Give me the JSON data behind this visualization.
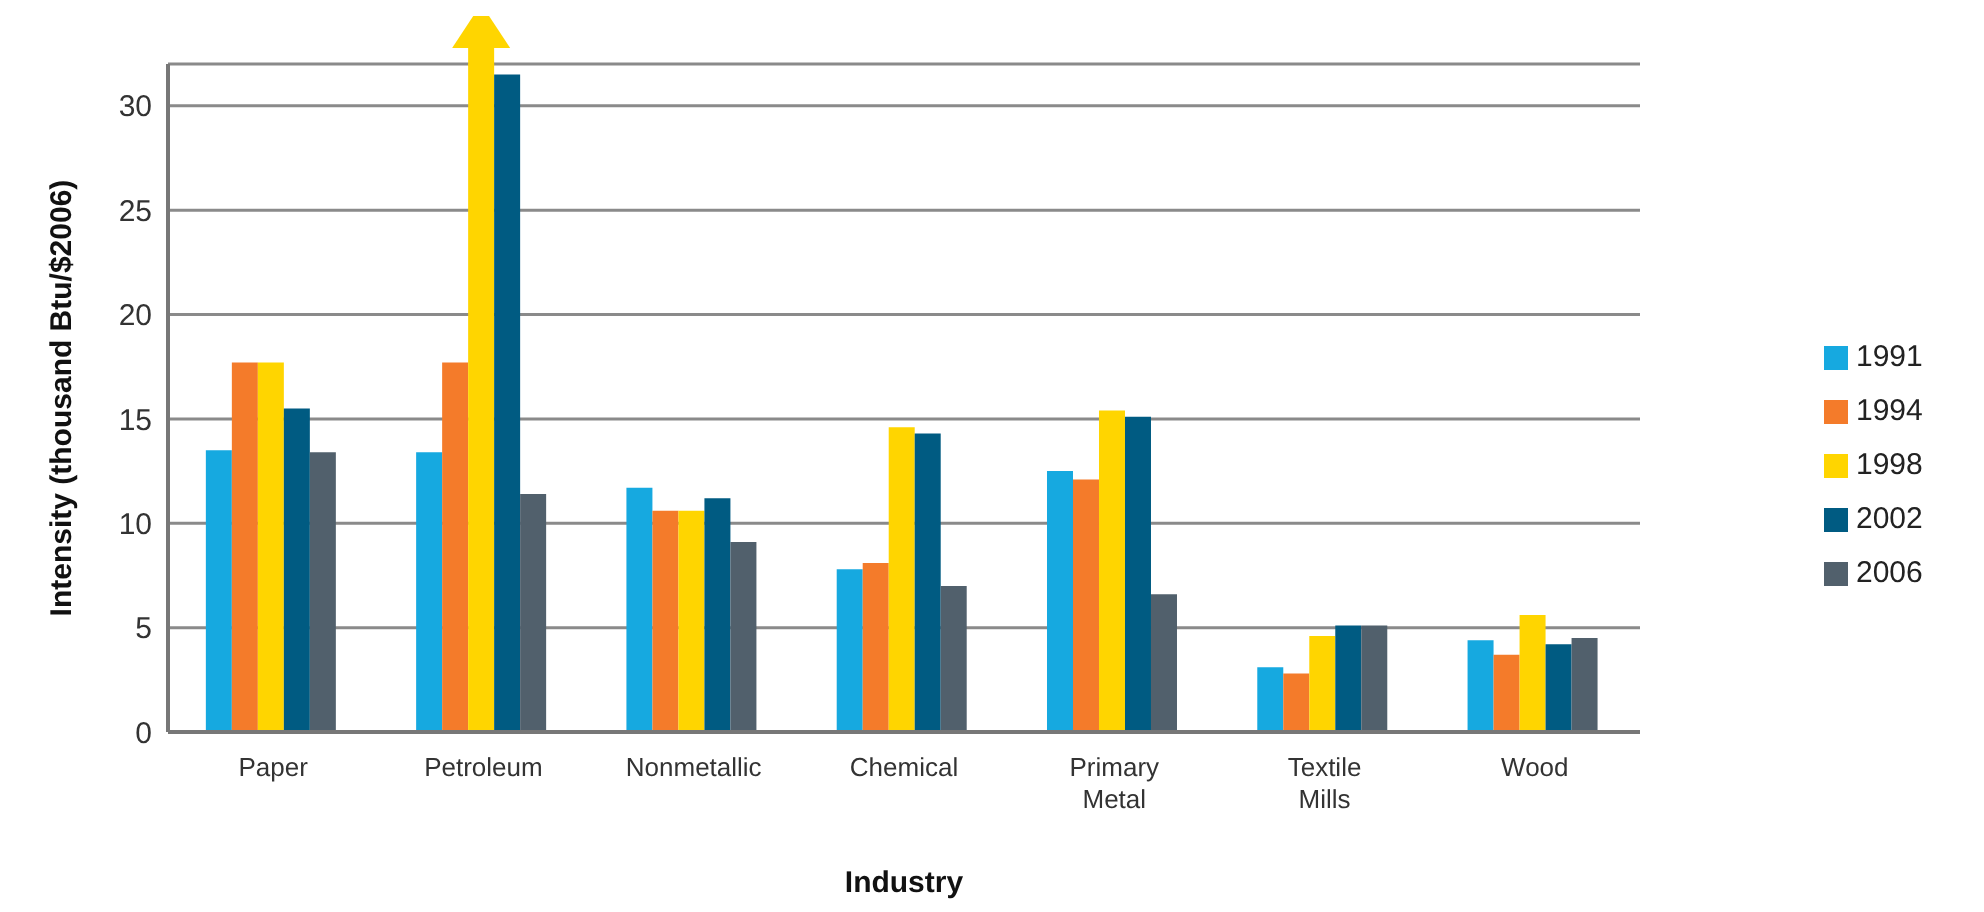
{
  "chart_data": {
    "type": "bar",
    "xlabel": "Industry",
    "ylabel": "Intensity (thousand Btu/$2006)",
    "categories": [
      "Paper",
      "Petroleum",
      "Nonmetallic",
      "Chemical",
      "Primary Metal",
      "Textile Mills",
      "Wood"
    ],
    "series": [
      {
        "name": "1991",
        "color": "#16a9e0",
        "values": [
          13.5,
          13.4,
          11.7,
          7.8,
          12.5,
          3.1,
          4.4
        ]
      },
      {
        "name": "1994",
        "color": "#f47b2a",
        "values": [
          17.7,
          17.7,
          10.6,
          8.1,
          12.1,
          2.8,
          3.7
        ]
      },
      {
        "name": "1998",
        "color": "#ffd500",
        "values": [
          17.7,
          32,
          10.6,
          14.6,
          15.4,
          4.6,
          5.6
        ]
      },
      {
        "name": "2002",
        "color": "#005b82",
        "values": [
          15.5,
          31.5,
          11.2,
          14.3,
          15.1,
          5.1,
          4.2
        ]
      },
      {
        "name": "2006",
        "color": "#51606c",
        "values": [
          13.4,
          11.4,
          9.1,
          7.0,
          6.6,
          5.1,
          4.5
        ]
      }
    ],
    "ylim": [
      0,
      32
    ],
    "yticks": [
      0,
      5,
      10,
      15,
      20,
      25,
      30
    ],
    "grid": "y",
    "legend": "right"
  }
}
